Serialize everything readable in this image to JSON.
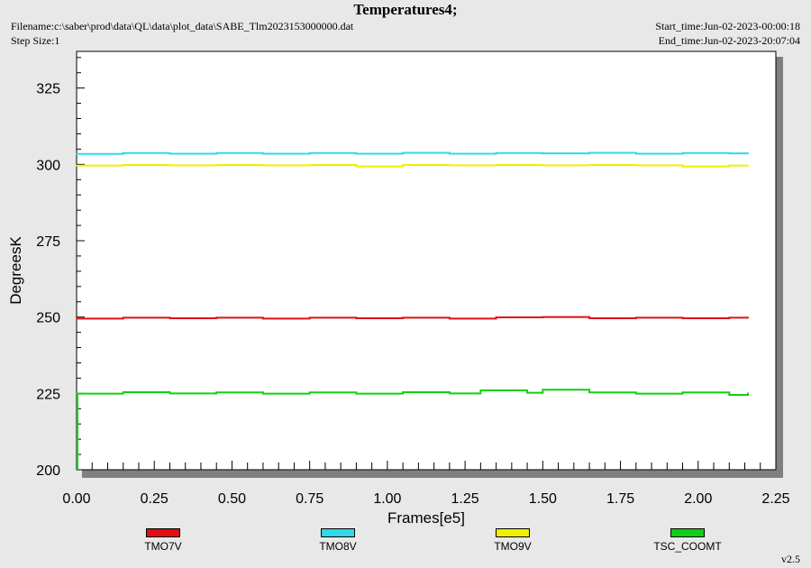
{
  "header": {
    "title": "Temperatures4;",
    "filename": "Filename:c:\\saber\\prod\\data\\QL\\data\\plot_data\\SABE_Tlm2023153000000.dat",
    "step_size": "Step Size:1",
    "start_time": "Start_time:Jun-02-2023-00:00:18",
    "end_time": "End_time:Jun-02-2023-20:07:04"
  },
  "version": "v2.5",
  "chart_data": {
    "type": "line",
    "title": "Temperatures4;",
    "xlabel": "Frames[e5]",
    "ylabel": "DegreesK",
    "xlim": [
      0,
      2.25
    ],
    "ylim": [
      200,
      337
    ],
    "xticks": [
      "0.00",
      "0.25",
      "0.50",
      "0.75",
      "1.00",
      "1.25",
      "1.50",
      "1.75",
      "2.00",
      "2.25"
    ],
    "yticks": [
      "200",
      "225",
      "250",
      "275",
      "300",
      "325"
    ],
    "grid": false,
    "legend_position": "bottom",
    "x_max_data": 2.16,
    "series": [
      {
        "name": "TMO7V",
        "color": "#e01010",
        "x": [
          0,
          0.15,
          0.3,
          0.45,
          0.6,
          0.75,
          0.9,
          1.05,
          1.2,
          1.35,
          1.5,
          1.65,
          1.8,
          1.95,
          2.1,
          2.16
        ],
        "values": [
          249.5,
          249.8,
          249.6,
          249.8,
          249.5,
          249.8,
          249.6,
          249.8,
          249.5,
          249.9,
          250.0,
          249.6,
          249.8,
          249.6,
          249.8,
          249.7
        ]
      },
      {
        "name": "TMO8V",
        "color": "#30d8e8",
        "x": [
          0,
          0.15,
          0.3,
          0.45,
          0.6,
          0.75,
          0.9,
          1.05,
          1.2,
          1.35,
          1.5,
          1.65,
          1.8,
          1.95,
          2.1,
          2.16
        ],
        "values": [
          303.4,
          303.7,
          303.5,
          303.7,
          303.5,
          303.7,
          303.5,
          303.8,
          303.5,
          303.7,
          303.6,
          303.8,
          303.5,
          303.7,
          303.6,
          303.5
        ]
      },
      {
        "name": "TMO9V",
        "color": "#f0f000",
        "x": [
          0,
          0.15,
          0.3,
          0.45,
          0.6,
          0.75,
          0.9,
          1.05,
          1.2,
          1.35,
          1.5,
          1.65,
          1.8,
          1.95,
          2.1,
          2.16
        ],
        "values": [
          299.6,
          299.8,
          299.7,
          299.8,
          299.7,
          299.8,
          299.3,
          299.8,
          299.7,
          299.8,
          299.7,
          299.8,
          299.7,
          299.3,
          299.6,
          299.7
        ]
      },
      {
        "name": "TSC_COOMT",
        "color": "#10d010",
        "x": [
          0,
          0.15,
          0.3,
          0.45,
          0.6,
          0.75,
          0.9,
          1.05,
          1.2,
          1.3,
          1.45,
          1.5,
          1.65,
          1.8,
          1.95,
          2.1,
          2.16
        ],
        "values": [
          224.9,
          225.4,
          225.0,
          225.3,
          224.9,
          225.3,
          224.9,
          225.4,
          225.0,
          226.0,
          225.2,
          226.2,
          225.3,
          224.9,
          225.3,
          224.5,
          225.1
        ]
      }
    ]
  }
}
